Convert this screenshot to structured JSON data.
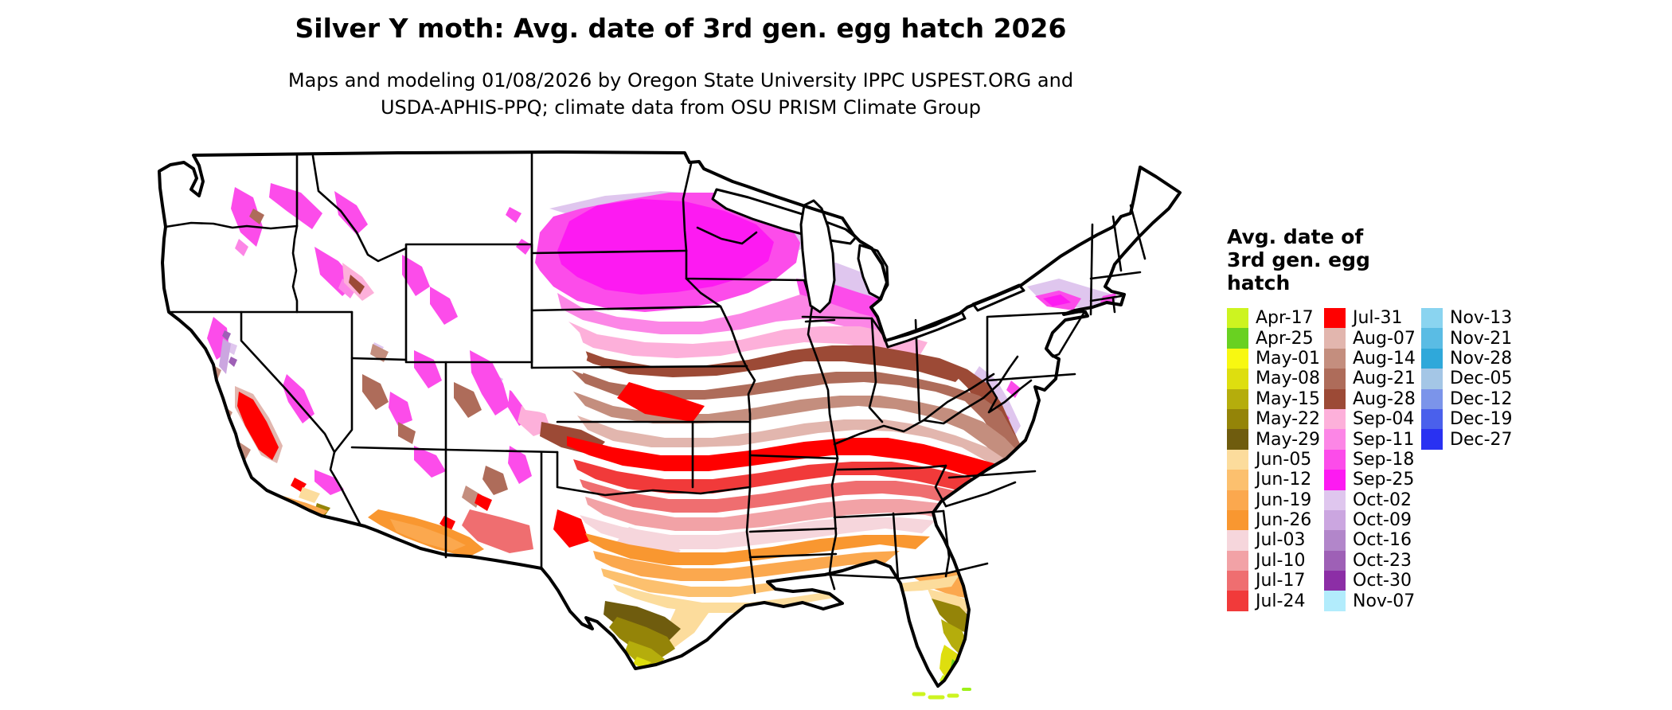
{
  "title": "Silver Y moth: Avg. date of 3rd gen. egg hatch 2026",
  "subtitle": {
    "line1": "Maps and modeling 01/08/2026 by Oregon State University IPPC USPEST.ORG and",
    "line2": "USDA-APHIS-PPQ; climate data from OSU PRISM Climate Group"
  },
  "legend": {
    "title_lines": [
      "Avg. date of",
      "3rd gen. egg",
      "hatch"
    ],
    "columns": [
      {
        "entries": [
          {
            "label": "Apr-17",
            "color": "#cdf420"
          },
          {
            "label": "Apr-25",
            "color": "#69d121"
          },
          {
            "label": "May-01",
            "color": "#f8f811"
          },
          {
            "label": "May-08",
            "color": "#dede0f"
          },
          {
            "label": "May-15",
            "color": "#b5ad0c"
          },
          {
            "label": "May-22",
            "color": "#948408"
          },
          {
            "label": "May-29",
            "color": "#6f5c0e"
          },
          {
            "label": "Jun-05",
            "color": "#fcdc9c"
          },
          {
            "label": "Jun-12",
            "color": "#fcc06e"
          },
          {
            "label": "Jun-19",
            "color": "#fba84e"
          },
          {
            "label": "Jun-26",
            "color": "#f99730"
          },
          {
            "label": "Jul-03",
            "color": "#f6d6dc"
          },
          {
            "label": "Jul-10",
            "color": "#f2a2a6"
          },
          {
            "label": "Jul-17",
            "color": "#ef6e70"
          },
          {
            "label": "Jul-24",
            "color": "#f13a3a"
          }
        ]
      },
      {
        "entries": [
          {
            "label": "Jul-31",
            "color": "#ff0000"
          },
          {
            "label": "Aug-07",
            "color": "#e2b6ae"
          },
          {
            "label": "Aug-14",
            "color": "#c48e7e"
          },
          {
            "label": "Aug-21",
            "color": "#ae6c5a"
          },
          {
            "label": "Aug-28",
            "color": "#9c4a36"
          },
          {
            "label": "Sep-04",
            "color": "#fdb0da"
          },
          {
            "label": "Sep-11",
            "color": "#fc86e6"
          },
          {
            "label": "Sep-18",
            "color": "#fc4cea"
          },
          {
            "label": "Sep-25",
            "color": "#fd1af2"
          },
          {
            "label": "Oct-02",
            "color": "#dfc6ee"
          },
          {
            "label": "Oct-09",
            "color": "#cba6e0"
          },
          {
            "label": "Oct-16",
            "color": "#b286ca"
          },
          {
            "label": "Oct-23",
            "color": "#9e60b6"
          },
          {
            "label": "Oct-30",
            "color": "#8c2ea6"
          },
          {
            "label": "Nov-07",
            "color": "#b2ecfc"
          }
        ]
      },
      {
        "entries": [
          {
            "label": "Nov-13",
            "color": "#8ad4f0"
          },
          {
            "label": "Nov-21",
            "color": "#5abce4"
          },
          {
            "label": "Nov-28",
            "color": "#2fa8da"
          },
          {
            "label": "Dec-05",
            "color": "#a4c6e6"
          },
          {
            "label": "Dec-12",
            "color": "#7b94ea"
          },
          {
            "label": "Dec-19",
            "color": "#4a60ec"
          },
          {
            "label": "Dec-27",
            "color": "#2931f2"
          }
        ]
      }
    ]
  }
}
